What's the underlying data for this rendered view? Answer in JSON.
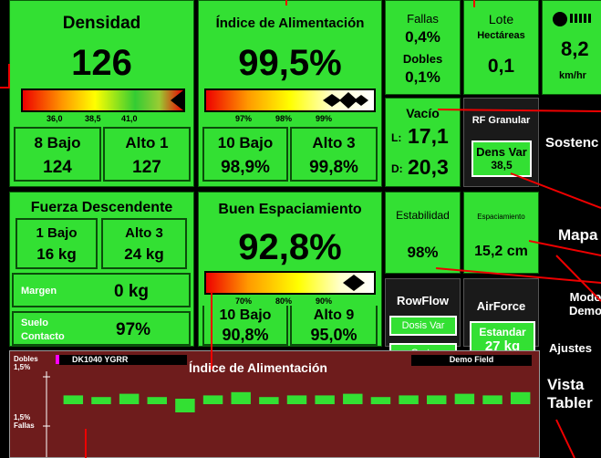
{
  "densidad": {
    "title": "Densidad",
    "value": "126",
    "scale": [
      "36,0",
      "38,5",
      "41,0"
    ],
    "low": {
      "label": "8 Bajo",
      "value": "124"
    },
    "high": {
      "label": "Alto 1",
      "value": "127"
    }
  },
  "alimentacion": {
    "title": "Índice de Alimentación",
    "value": "99,5%",
    "scale": [
      "97%",
      "98%",
      "99%"
    ],
    "low": {
      "label": "10 Bajo",
      "value": "98,9%"
    },
    "high": {
      "label": "Alto 3",
      "value": "99,8%"
    }
  },
  "fallas": {
    "label": "Fallas",
    "value": "0,4%",
    "label2": "Dobles",
    "value2": "0,1%"
  },
  "lote": {
    "label": "Lote",
    "unit": "Hectáreas",
    "value": "0,1"
  },
  "velocidad": {
    "value": "8,2",
    "unit": "km/hr"
  },
  "vacio": {
    "label": "Vacío",
    "l": "L:",
    "l_value": "17,1",
    "d": "D:",
    "d_value": "20,3"
  },
  "rf_granular": {
    "label": "RF Granular",
    "button": "Dens Var",
    "value": "38,5"
  },
  "menu": {
    "sosten": "Sostenc",
    "mapa": "Mapa",
    "modo": "Modo Demo",
    "ajustes": "Ajustes",
    "vista": "Vista Tabler"
  },
  "fuerza": {
    "title": "Fuerza Descendente",
    "low": {
      "label": "1 Bajo",
      "value": "16 kg"
    },
    "high": {
      "label": "Alto 3",
      "value": "24 kg"
    },
    "margen": {
      "label": "Margen",
      "value": "0 kg"
    },
    "suelo": {
      "label": "Suelo Contacto",
      "value": "97%"
    }
  },
  "espaciamiento_bueno": {
    "title": "Buen Espaciamiento",
    "value": "92,8%",
    "scale": [
      "70%",
      "80%",
      "90%"
    ],
    "low": {
      "label": "10 Bajo",
      "value": "90,8%"
    },
    "high": {
      "label": "Alto 9",
      "value": "95,0%"
    }
  },
  "estabilidad": {
    "label": "Estabilidad",
    "value": "98%"
  },
  "espaciamiento": {
    "label": "Espaciamiento",
    "value": "15,2 cm"
  },
  "rowflow": {
    "label": "RowFlow",
    "button1": "Dosis Var",
    "button2": "Corte"
  },
  "airforce": {
    "label": "AirForce",
    "button": "Estandar",
    "value": "27 kg"
  },
  "strip": {
    "title": "Índice de Alimentación",
    "legend": "DK1040 YGRR",
    "field": "Demo Field",
    "top_label": "Dobles",
    "top_value": "1,5%",
    "bottom_value": "1,5%",
    "bottom_label": "Fallas",
    "ylim": [
      -1.5,
      1.5
    ],
    "values": [
      0.2,
      0.1,
      0.3,
      0.1,
      -0.5,
      0.2,
      0.4,
      0.1,
      0.2,
      0.2,
      0.3,
      0.1,
      0.2,
      0.2,
      0.3,
      0.2,
      0.4
    ]
  }
}
